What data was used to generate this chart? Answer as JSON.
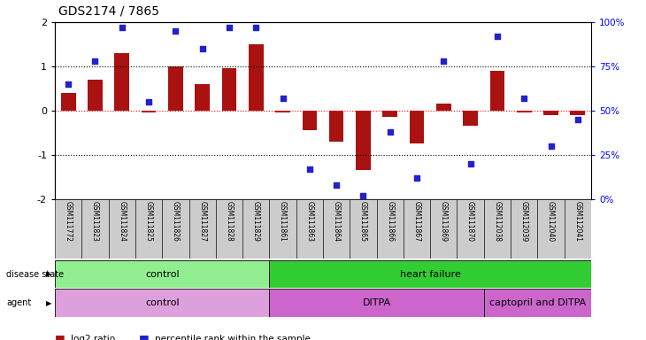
{
  "title": "GDS2174 / 7865",
  "samples": [
    "GSM111772",
    "GSM111823",
    "GSM111824",
    "GSM111825",
    "GSM111826",
    "GSM111827",
    "GSM111828",
    "GSM111829",
    "GSM111861",
    "GSM111863",
    "GSM111864",
    "GSM111865",
    "GSM111866",
    "GSM111867",
    "GSM111869",
    "GSM111870",
    "GSM112038",
    "GSM112039",
    "GSM112040",
    "GSM112041"
  ],
  "log2_ratio": [
    0.4,
    0.7,
    1.3,
    -0.05,
    1.0,
    0.6,
    0.95,
    1.5,
    -0.05,
    -0.45,
    -0.7,
    -1.35,
    -0.15,
    -0.75,
    0.15,
    -0.35,
    0.9,
    -0.05,
    -0.1,
    -0.1
  ],
  "percentile": [
    65,
    78,
    97,
    55,
    95,
    85,
    97,
    97,
    57,
    17,
    8,
    2,
    38,
    12,
    78,
    20,
    92,
    57,
    30,
    45
  ],
  "disease_state_groups": [
    {
      "label": "control",
      "start": 0,
      "end": 8,
      "color": "#90ee90"
    },
    {
      "label": "heart failure",
      "start": 8,
      "end": 20,
      "color": "#32cd32"
    }
  ],
  "agent_groups": [
    {
      "label": "control",
      "start": 0,
      "end": 8,
      "color": "#dda0dd"
    },
    {
      "label": "DITPA",
      "start": 8,
      "end": 16,
      "color": "#cc66cc"
    },
    {
      "label": "captopril and DITPA",
      "start": 16,
      "end": 20,
      "color": "#cc66cc"
    }
  ],
  "bar_color": "#aa1111",
  "dot_color": "#2222cc",
  "ylim": [
    -2,
    2
  ],
  "y2lim": [
    0,
    100
  ],
  "background_color": "#ffffff"
}
